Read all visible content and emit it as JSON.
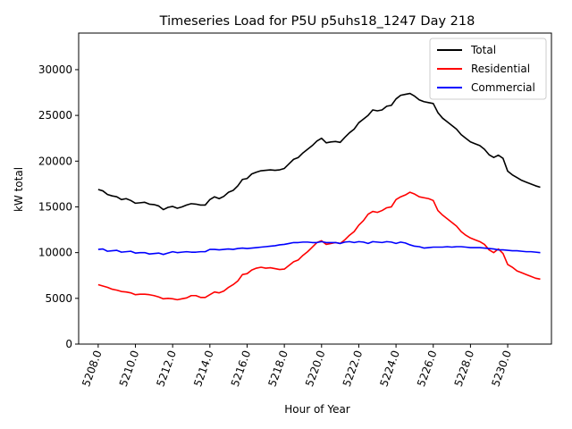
{
  "chart_data": {
    "type": "line",
    "title": "Timeseries Load for P5U p5uhs18_1247  Day 218",
    "xlabel": "Hour of Year",
    "ylabel": "kW total",
    "xlim": [
      5206.95,
      5232.35
    ],
    "ylim": [
      0,
      34000
    ],
    "x_ticks": [
      5208.0,
      5210.0,
      5212.0,
      5214.0,
      5216.0,
      5218.0,
      5220.0,
      5222.0,
      5224.0,
      5226.0,
      5228.0,
      5230.0
    ],
    "x_tick_labels": [
      "5208.0",
      "5210.0",
      "5212.0",
      "5214.0",
      "5216.0",
      "5218.0",
      "5220.0",
      "5222.0",
      "5224.0",
      "5226.0",
      "5228.0",
      "5230.0"
    ],
    "y_ticks": [
      0,
      5000,
      10000,
      15000,
      20000,
      25000,
      30000
    ],
    "y_tick_labels": [
      "0",
      "5000",
      "10000",
      "15000",
      "20000",
      "25000",
      "30000"
    ],
    "legend_position": "top-right",
    "series": [
      {
        "name": "Total",
        "color": "#000000",
        "x": [
          5208.0,
          5208.25,
          5208.5,
          5208.75,
          5209.0,
          5209.25,
          5209.5,
          5209.75,
          5210.0,
          5210.25,
          5210.5,
          5210.75,
          5211.0,
          5211.25,
          5211.5,
          5211.75,
          5212.0,
          5212.25,
          5212.5,
          5212.75,
          5213.0,
          5213.25,
          5213.5,
          5213.75,
          5214.0,
          5214.25,
          5214.5,
          5214.75,
          5215.0,
          5215.25,
          5215.5,
          5215.75,
          5216.0,
          5216.25,
          5216.5,
          5216.75,
          5217.0,
          5217.25,
          5217.5,
          5217.75,
          5218.0,
          5218.25,
          5218.5,
          5218.75,
          5219.0,
          5219.25,
          5219.5,
          5219.75,
          5220.0,
          5220.25,
          5220.5,
          5220.75,
          5221.0,
          5221.25,
          5221.5,
          5221.75,
          5222.0,
          5222.25,
          5222.5,
          5222.75,
          5223.0,
          5223.25,
          5223.5,
          5223.75,
          5224.0,
          5224.25,
          5224.5,
          5224.75,
          5225.0,
          5225.25,
          5225.5,
          5225.75,
          5226.0,
          5226.25,
          5226.5,
          5226.75,
          5227.0,
          5227.25,
          5227.5,
          5227.75,
          5228.0,
          5228.25,
          5228.5,
          5228.75,
          5229.0,
          5229.25,
          5229.5,
          5229.75,
          5230.0,
          5230.25,
          5230.5,
          5230.75,
          5231.0,
          5231.25,
          5231.5,
          5231.75
        ],
        "values": [
          16900,
          16750,
          16350,
          16200,
          16100,
          15800,
          15900,
          15700,
          15400,
          15450,
          15500,
          15300,
          15250,
          15100,
          14700,
          14950,
          15050,
          14850,
          15000,
          15200,
          15350,
          15300,
          15200,
          15200,
          15800,
          16100,
          15900,
          16150,
          16600,
          16800,
          17300,
          18000,
          18100,
          18600,
          18800,
          18950,
          19000,
          19050,
          19000,
          19050,
          19200,
          19700,
          20200,
          20400,
          20900,
          21300,
          21700,
          22200,
          22500,
          22000,
          22100,
          22150,
          22050,
          22600,
          23100,
          23500,
          24200,
          24600,
          25000,
          25600,
          25500,
          25600,
          26000,
          26100,
          26800,
          27200,
          27300,
          27400,
          27100,
          26700,
          26500,
          26400,
          26300,
          25300,
          24700,
          24300,
          23900,
          23500,
          22900,
          22500,
          22100,
          21900,
          21700,
          21300,
          20700,
          20400,
          20650,
          20300,
          18900,
          18500,
          18200,
          17900,
          17700,
          17500,
          17300,
          17150
        ]
      },
      {
        "name": "Residential",
        "color": "#ff0000",
        "x": [
          5208.0,
          5208.25,
          5208.5,
          5208.75,
          5209.0,
          5209.25,
          5209.5,
          5209.75,
          5210.0,
          5210.25,
          5210.5,
          5210.75,
          5211.0,
          5211.25,
          5211.5,
          5211.75,
          5212.0,
          5212.25,
          5212.5,
          5212.75,
          5213.0,
          5213.25,
          5213.5,
          5213.75,
          5214.0,
          5214.25,
          5214.5,
          5214.75,
          5215.0,
          5215.25,
          5215.5,
          5215.75,
          5216.0,
          5216.25,
          5216.5,
          5216.75,
          5217.0,
          5217.25,
          5217.5,
          5217.75,
          5218.0,
          5218.25,
          5218.5,
          5218.75,
          5219.0,
          5219.25,
          5219.5,
          5219.75,
          5220.0,
          5220.25,
          5220.5,
          5220.75,
          5221.0,
          5221.25,
          5221.5,
          5221.75,
          5222.0,
          5222.25,
          5222.5,
          5222.75,
          5223.0,
          5223.25,
          5223.5,
          5223.75,
          5224.0,
          5224.25,
          5224.5,
          5224.75,
          5225.0,
          5225.25,
          5225.5,
          5225.75,
          5226.0,
          5226.25,
          5226.5,
          5226.75,
          5227.0,
          5227.25,
          5227.5,
          5227.75,
          5228.0,
          5228.25,
          5228.5,
          5228.75,
          5229.0,
          5229.25,
          5229.5,
          5229.75,
          5230.0,
          5230.25,
          5230.5,
          5230.75,
          5231.0,
          5231.25,
          5231.5,
          5231.75
        ],
        "values": [
          6500,
          6350,
          6200,
          6000,
          5900,
          5750,
          5700,
          5600,
          5400,
          5450,
          5450,
          5400,
          5300,
          5150,
          4950,
          5000,
          4950,
          4850,
          4950,
          5050,
          5300,
          5300,
          5100,
          5100,
          5400,
          5700,
          5600,
          5800,
          6200,
          6500,
          6900,
          7600,
          7700,
          8100,
          8300,
          8400,
          8300,
          8350,
          8250,
          8150,
          8200,
          8600,
          9000,
          9200,
          9700,
          10100,
          10600,
          11100,
          11300,
          10900,
          11000,
          11100,
          11000,
          11400,
          11900,
          12300,
          13000,
          13500,
          14200,
          14500,
          14400,
          14600,
          14900,
          15000,
          15800,
          16100,
          16300,
          16600,
          16400,
          16100,
          16000,
          15900,
          15700,
          14600,
          14100,
          13700,
          13300,
          12900,
          12300,
          11900,
          11600,
          11400,
          11200,
          10900,
          10300,
          10000,
          10400,
          9900,
          8700,
          8400,
          8000,
          7800,
          7600,
          7400,
          7200,
          7100
        ]
      },
      {
        "name": "Commercial",
        "color": "#0000ff",
        "x": [
          5208.0,
          5208.25,
          5208.5,
          5208.75,
          5209.0,
          5209.25,
          5209.5,
          5209.75,
          5210.0,
          5210.25,
          5210.5,
          5210.75,
          5211.0,
          5211.25,
          5211.5,
          5211.75,
          5212.0,
          5212.25,
          5212.5,
          5212.75,
          5213.0,
          5213.25,
          5213.5,
          5213.75,
          5214.0,
          5214.25,
          5214.5,
          5214.75,
          5215.0,
          5215.25,
          5215.5,
          5215.75,
          5216.0,
          5216.25,
          5216.5,
          5216.75,
          5217.0,
          5217.25,
          5217.5,
          5217.75,
          5218.0,
          5218.25,
          5218.5,
          5218.75,
          5219.0,
          5219.25,
          5219.5,
          5219.75,
          5220.0,
          5220.25,
          5220.5,
          5220.75,
          5221.0,
          5221.25,
          5221.5,
          5221.75,
          5222.0,
          5222.25,
          5222.5,
          5222.75,
          5223.0,
          5223.25,
          5223.5,
          5223.75,
          5224.0,
          5224.25,
          5224.5,
          5224.75,
          5225.0,
          5225.25,
          5225.5,
          5225.75,
          5226.0,
          5226.25,
          5226.5,
          5226.75,
          5227.0,
          5227.25,
          5227.5,
          5227.75,
          5228.0,
          5228.25,
          5228.5,
          5228.75,
          5229.0,
          5229.25,
          5229.5,
          5229.75,
          5230.0,
          5230.25,
          5230.5,
          5230.75,
          5231.0,
          5231.25,
          5231.5,
          5231.75
        ],
        "values": [
          10350,
          10400,
          10150,
          10200,
          10250,
          10050,
          10100,
          10150,
          9950,
          10000,
          10000,
          9850,
          9900,
          9950,
          9800,
          9950,
          10100,
          10000,
          10050,
          10100,
          10050,
          10050,
          10100,
          10100,
          10350,
          10350,
          10300,
          10350,
          10400,
          10350,
          10450,
          10500,
          10450,
          10500,
          10550,
          10600,
          10650,
          10700,
          10750,
          10850,
          10900,
          11000,
          11100,
          11100,
          11150,
          11150,
          11100,
          11100,
          11200,
          11100,
          11100,
          11100,
          11000,
          11150,
          11200,
          11100,
          11200,
          11150,
          11000,
          11200,
          11150,
          11100,
          11200,
          11150,
          11000,
          11150,
          11050,
          10850,
          10700,
          10650,
          10500,
          10550,
          10600,
          10600,
          10600,
          10650,
          10600,
          10650,
          10650,
          10600,
          10550,
          10550,
          10550,
          10500,
          10450,
          10400,
          10300,
          10300,
          10250,
          10200,
          10200,
          10150,
          10100,
          10100,
          10050,
          10000
        ]
      }
    ]
  }
}
